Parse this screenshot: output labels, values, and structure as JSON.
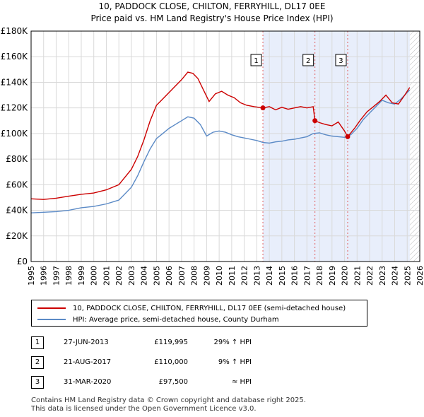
{
  "title_line1": "10, PADDOCK CLOSE, CHILTON, FERRYHILL, DL17 0EE",
  "title_line2": "Price paid vs. HM Land Registry's House Price Index (HPI)",
  "colors": {
    "property": "#cc0000",
    "hpi": "#5b8ac6",
    "shade": "#e8eefb",
    "grid": "#d9d9d9",
    "marker_line": "#e06060"
  },
  "legend": {
    "property_label": "10, PADDOCK CLOSE, CHILTON, FERRYHILL, DL17 0EE (semi-detached house)",
    "hpi_label": "HPI: Average price, semi-detached house, County Durham"
  },
  "sales": [
    {
      "num": "1",
      "date": "27-JUN-2013",
      "price": "£119,995",
      "hpi": "29% ↑ HPI"
    },
    {
      "num": "2",
      "date": "21-AUG-2017",
      "price": "£110,000",
      "hpi": "9% ↑ HPI"
    },
    {
      "num": "3",
      "date": "31-MAR-2020",
      "price": "£97,500",
      "hpi": "≈ HPI"
    }
  ],
  "footer_line1": "Contains HM Land Registry data © Crown copyright and database right 2025.",
  "footer_line2": "This data is licensed under the Open Government Licence v3.0.",
  "chart_data": {
    "type": "line",
    "xlim": [
      1995,
      2026
    ],
    "ylim": [
      0,
      180000
    ],
    "x_ticks": [
      1995,
      1996,
      1997,
      1998,
      1999,
      2000,
      2001,
      2002,
      2003,
      2004,
      2005,
      2006,
      2007,
      2008,
      2009,
      2010,
      2011,
      2012,
      2013,
      2014,
      2015,
      2016,
      2017,
      2018,
      2019,
      2020,
      2021,
      2022,
      2023,
      2024,
      2025,
      2026
    ],
    "y_ticks": [
      0,
      20000,
      40000,
      60000,
      80000,
      100000,
      120000,
      140000,
      160000,
      180000
    ],
    "y_tick_labels": [
      "£0",
      "£20K",
      "£40K",
      "£60K",
      "£80K",
      "£100K",
      "£120K",
      "£140K",
      "£160K",
      "£180K"
    ],
    "shaded_ranges": [
      [
        2013.49,
        2025.2
      ]
    ],
    "hatched_range": [
      2025.2,
      2026
    ],
    "sale_markers": [
      {
        "label": "1",
        "x": 2013.49,
        "y": 119995
      },
      {
        "label": "2",
        "x": 2017.64,
        "y": 110000
      },
      {
        "label": "3",
        "x": 2020.25,
        "y": 97500
      }
    ],
    "series": [
      {
        "name": "10, PADDOCK CLOSE, CHILTON, FERRYHILL, DL17 0EE (semi-detached house)",
        "points": [
          [
            1995,
            49000
          ],
          [
            1996,
            48500
          ],
          [
            1997,
            49500
          ],
          [
            1998,
            51000
          ],
          [
            1999,
            52500
          ],
          [
            2000,
            53500
          ],
          [
            2001,
            56000
          ],
          [
            2002,
            60000
          ],
          [
            2003,
            72000
          ],
          [
            2003.5,
            82000
          ],
          [
            2004,
            95000
          ],
          [
            2004.5,
            110000
          ],
          [
            2005,
            122000
          ],
          [
            2005.5,
            127000
          ],
          [
            2006,
            132000
          ],
          [
            2006.5,
            137000
          ],
          [
            2007,
            142000
          ],
          [
            2007.5,
            148000
          ],
          [
            2007.9,
            147000
          ],
          [
            2008.3,
            143000
          ],
          [
            2008.8,
            133000
          ],
          [
            2009.2,
            125000
          ],
          [
            2009.7,
            131000
          ],
          [
            2010.2,
            133000
          ],
          [
            2010.7,
            130000
          ],
          [
            2011.2,
            128000
          ],
          [
            2011.7,
            124000
          ],
          [
            2012.2,
            122000
          ],
          [
            2012.8,
            121000
          ],
          [
            2013.49,
            119995
          ],
          [
            2014,
            121000
          ],
          [
            2014.5,
            118500
          ],
          [
            2015,
            120500
          ],
          [
            2015.5,
            119000
          ],
          [
            2016,
            120000
          ],
          [
            2016.5,
            121000
          ],
          [
            2017,
            120000
          ],
          [
            2017.5,
            121000
          ],
          [
            2017.64,
            110000
          ],
          [
            2018,
            108500
          ],
          [
            2018.5,
            107000
          ],
          [
            2019,
            106000
          ],
          [
            2019.5,
            109000
          ],
          [
            2020,
            102000
          ],
          [
            2020.25,
            97500
          ],
          [
            2020.8,
            104000
          ],
          [
            2021.3,
            111000
          ],
          [
            2021.8,
            117000
          ],
          [
            2022.3,
            121000
          ],
          [
            2022.8,
            125000
          ],
          [
            2023.3,
            130000
          ],
          [
            2023.8,
            124000
          ],
          [
            2024.3,
            123000
          ],
          [
            2024.8,
            130000
          ],
          [
            2025.2,
            136000
          ]
        ]
      },
      {
        "name": "HPI: Average price, semi-detached house, County Durham",
        "points": [
          [
            1995,
            38000
          ],
          [
            1996,
            38500
          ],
          [
            1997,
            39000
          ],
          [
            1998,
            40000
          ],
          [
            1999,
            42000
          ],
          [
            2000,
            43000
          ],
          [
            2001,
            45000
          ],
          [
            2002,
            48000
          ],
          [
            2003,
            58000
          ],
          [
            2003.5,
            67000
          ],
          [
            2004,
            78000
          ],
          [
            2004.5,
            88000
          ],
          [
            2005,
            96000
          ],
          [
            2005.5,
            100000
          ],
          [
            2006,
            104000
          ],
          [
            2006.5,
            107000
          ],
          [
            2007,
            110000
          ],
          [
            2007.5,
            113000
          ],
          [
            2008,
            112000
          ],
          [
            2008.5,
            107000
          ],
          [
            2009,
            98000
          ],
          [
            2009.5,
            101000
          ],
          [
            2010,
            102000
          ],
          [
            2010.5,
            101000
          ],
          [
            2011,
            99000
          ],
          [
            2011.5,
            97500
          ],
          [
            2012,
            96500
          ],
          [
            2012.5,
            95500
          ],
          [
            2013,
            94500
          ],
          [
            2013.5,
            93000
          ],
          [
            2014,
            92500
          ],
          [
            2014.5,
            93500
          ],
          [
            2015,
            94000
          ],
          [
            2015.5,
            95000
          ],
          [
            2016,
            95500
          ],
          [
            2016.5,
            96500
          ],
          [
            2017,
            97500
          ],
          [
            2017.5,
            100000
          ],
          [
            2018,
            100500
          ],
          [
            2018.5,
            99000
          ],
          [
            2019,
            98000
          ],
          [
            2019.5,
            97500
          ],
          [
            2020,
            97000
          ],
          [
            2020.5,
            99000
          ],
          [
            2021,
            104000
          ],
          [
            2021.5,
            111000
          ],
          [
            2022,
            116000
          ],
          [
            2022.5,
            121000
          ],
          [
            2023,
            126000
          ],
          [
            2023.5,
            124000
          ],
          [
            2024,
            123000
          ],
          [
            2024.5,
            127000
          ],
          [
            2025,
            132000
          ],
          [
            2025.2,
            134000
          ]
        ]
      }
    ]
  }
}
